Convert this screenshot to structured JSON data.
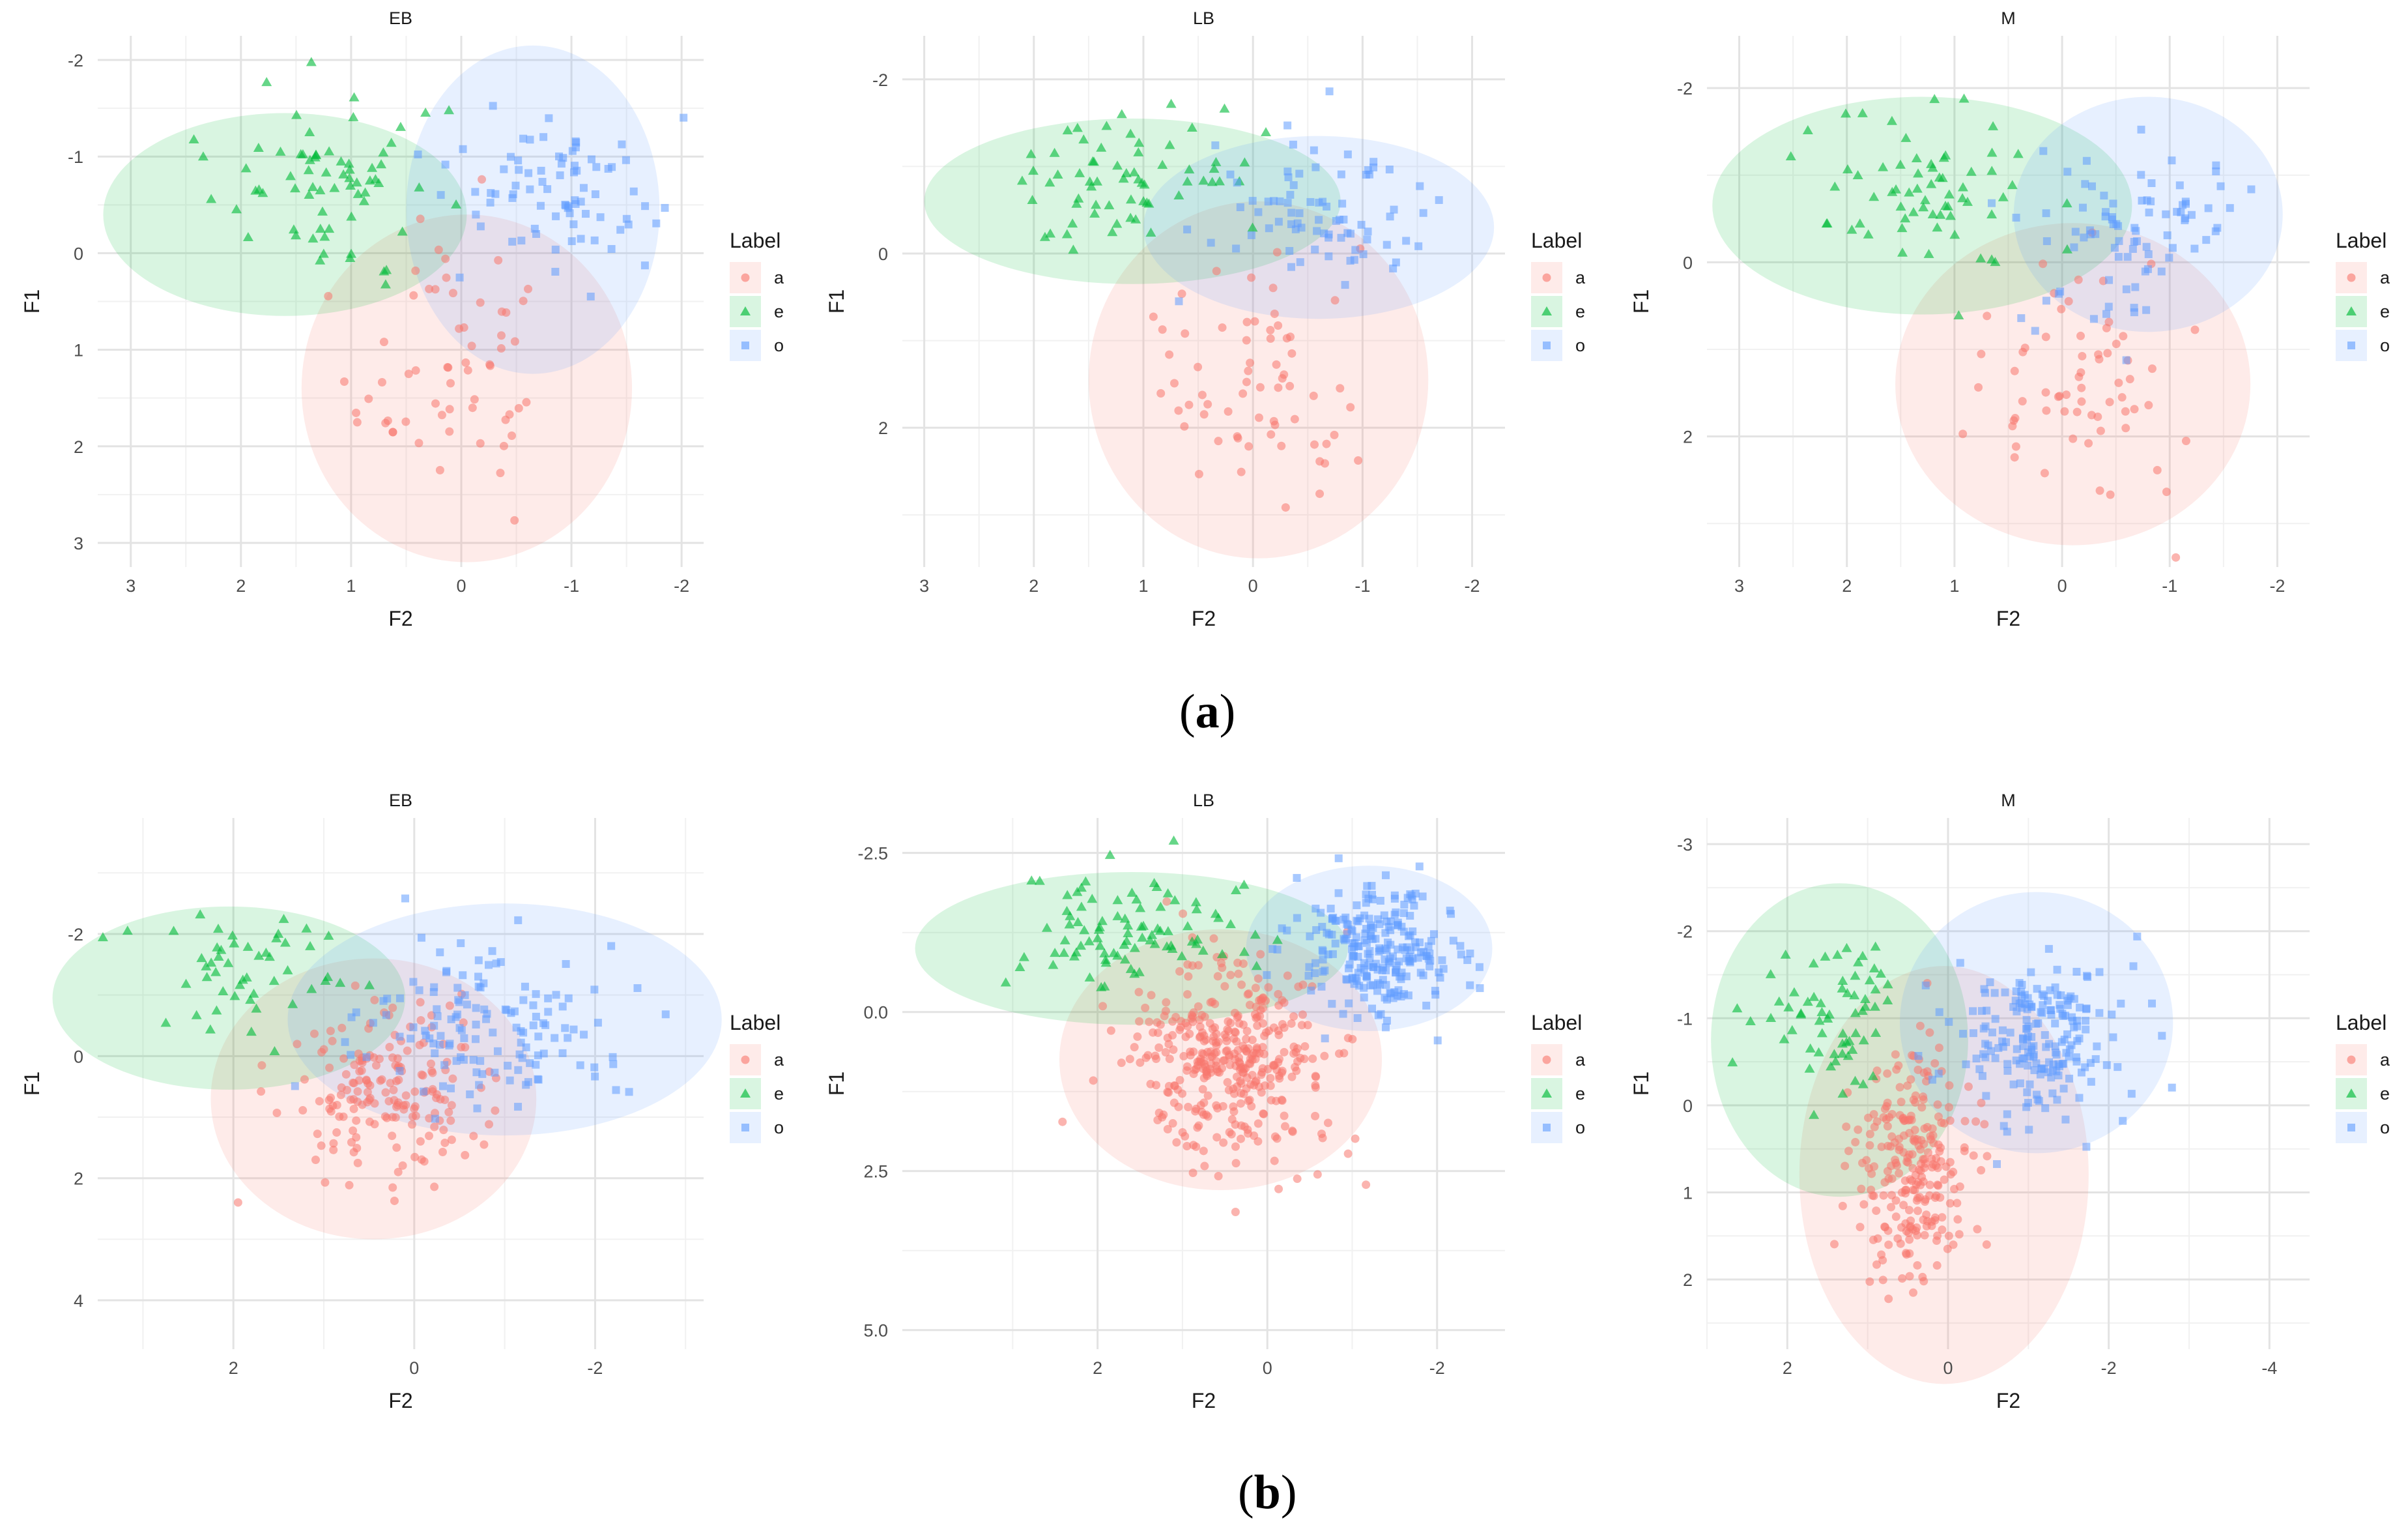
{
  "figure": {
    "row_labels": [
      "a",
      "b"
    ]
  },
  "legend_title": "Label",
  "colors": {
    "a": "#F8766D",
    "e": "#00BA38",
    "o": "#619CFF"
  },
  "chart_data": [
    {
      "type": "scatter",
      "title": "EB",
      "xlabel": "F2",
      "ylabel": "F1",
      "x_reversed": true,
      "y_reversed": true,
      "xlim": [
        3.3,
        -2.2
      ],
      "ylim": [
        -2.25,
        3.25
      ],
      "xticks": [
        3,
        2,
        1,
        0,
        -1,
        -2
      ],
      "yticks": [
        -2,
        -1,
        0,
        1,
        2,
        3
      ],
      "legend": [
        "a",
        "e",
        "o"
      ],
      "legend_position": "right",
      "grid": true,
      "series": [
        {
          "name": "a",
          "n": 60,
          "cx": 0.0,
          "cy": 1.2,
          "sx": 0.45,
          "sy": 0.75,
          "ellipse": {
            "cx": -0.05,
            "cy": 1.4,
            "rx": 1.5,
            "ry": 1.8
          },
          "shape": "circle"
        },
        {
          "name": "e",
          "n": 70,
          "cx": 1.2,
          "cy": -0.75,
          "sx": 0.55,
          "sy": 0.45,
          "ellipse": {
            "cx": 1.6,
            "cy": -0.4,
            "rx": 1.65,
            "ry": 1.05
          },
          "shape": "triangle"
        },
        {
          "name": "o",
          "n": 80,
          "cx": -0.85,
          "cy": -0.6,
          "sx": 0.45,
          "sy": 0.45,
          "ellipse": {
            "cx": -0.65,
            "cy": -0.45,
            "rx": 1.15,
            "ry": 1.7
          },
          "shape": "square"
        }
      ]
    },
    {
      "type": "scatter",
      "title": "LB",
      "xlabel": "F2",
      "ylabel": "F1",
      "x_reversed": true,
      "y_reversed": true,
      "xlim": [
        3.2,
        -2.3
      ],
      "ylim": [
        -2.5,
        3.6
      ],
      "xticks": [
        3,
        2,
        1,
        0,
        -1,
        -2
      ],
      "yticks": [
        -2,
        0,
        2
      ],
      "legend": [
        "a",
        "e",
        "o"
      ],
      "legend_position": "right",
      "grid": true,
      "series": [
        {
          "name": "a",
          "n": 65,
          "cx": 0.0,
          "cy": 1.3,
          "sx": 0.5,
          "sy": 0.8,
          "ellipse": {
            "cx": -0.05,
            "cy": 1.45,
            "rx": 1.55,
            "ry": 2.05
          },
          "shape": "circle"
        },
        {
          "name": "e",
          "n": 65,
          "cx": 1.2,
          "cy": -0.75,
          "sx": 0.5,
          "sy": 0.4,
          "ellipse": {
            "cx": 1.1,
            "cy": -0.6,
            "rx": 1.9,
            "ry": 0.95
          },
          "shape": "triangle"
        },
        {
          "name": "o",
          "n": 80,
          "cx": -0.7,
          "cy": -0.4,
          "sx": 0.5,
          "sy": 0.45,
          "ellipse": {
            "cx": -0.6,
            "cy": -0.3,
            "rx": 1.6,
            "ry": 1.05
          },
          "shape": "square"
        }
      ]
    },
    {
      "type": "scatter",
      "title": "M",
      "xlabel": "F2",
      "ylabel": "F1",
      "x_reversed": true,
      "y_reversed": true,
      "xlim": [
        3.3,
        -2.3
      ],
      "ylim": [
        -2.6,
        3.5
      ],
      "xticks": [
        3,
        2,
        1,
        0,
        -1,
        -2
      ],
      "yticks": [
        -2,
        0,
        2
      ],
      "legend": [
        "a",
        "e",
        "o"
      ],
      "legend_position": "right",
      "grid": true,
      "series": [
        {
          "name": "a",
          "n": 65,
          "cx": -0.1,
          "cy": 1.3,
          "sx": 0.5,
          "sy": 0.75,
          "ellipse": {
            "cx": -0.1,
            "cy": 1.4,
            "rx": 1.65,
            "ry": 1.85
          },
          "shape": "circle"
        },
        {
          "name": "e",
          "n": 65,
          "cx": 1.2,
          "cy": -0.75,
          "sx": 0.55,
          "sy": 0.45,
          "ellipse": {
            "cx": 1.3,
            "cy": -0.65,
            "rx": 1.95,
            "ry": 1.25
          },
          "shape": "triangle"
        },
        {
          "name": "o",
          "n": 85,
          "cx": -0.6,
          "cy": -0.3,
          "sx": 0.5,
          "sy": 0.55,
          "ellipse": {
            "cx": -0.8,
            "cy": -0.55,
            "rx": 1.25,
            "ry": 1.35
          },
          "shape": "square"
        }
      ]
    },
    {
      "type": "scatter",
      "title": "EB",
      "xlabel": "F2",
      "ylabel": "F1",
      "x_reversed": true,
      "y_reversed": true,
      "xlim": [
        3.5,
        -3.2
      ],
      "ylim": [
        -3.9,
        4.8
      ],
      "xticks": [
        2,
        0,
        -2
      ],
      "yticks": [
        -2,
        0,
        2,
        4
      ],
      "legend": [
        "a",
        "e",
        "o"
      ],
      "legend_position": "right",
      "grid": true,
      "series": [
        {
          "name": "a",
          "n": 180,
          "cx": 0.3,
          "cy": 0.6,
          "sx": 0.55,
          "sy": 0.7,
          "ellipse": {
            "cx": 0.45,
            "cy": 0.7,
            "rx": 1.8,
            "ry": 2.3
          },
          "shape": "circle"
        },
        {
          "name": "e",
          "n": 50,
          "cx": 1.9,
          "cy": -1.4,
          "sx": 0.6,
          "sy": 0.55,
          "ellipse": {
            "cx": 2.05,
            "cy": -0.95,
            "rx": 1.95,
            "ry": 1.5
          },
          "shape": "triangle"
        },
        {
          "name": "o",
          "n": 140,
          "cx": -0.9,
          "cy": -0.5,
          "sx": 0.75,
          "sy": 0.7,
          "ellipse": {
            "cx": -1.0,
            "cy": -0.6,
            "rx": 2.4,
            "ry": 1.9
          },
          "shape": "square"
        }
      ]
    },
    {
      "type": "scatter",
      "title": "LB",
      "xlabel": "F2",
      "ylabel": "F1",
      "x_reversed": true,
      "y_reversed": true,
      "xlim": [
        4.3,
        -2.8
      ],
      "ylim": [
        -3.05,
        5.3
      ],
      "xticks": [
        2,
        0,
        -2
      ],
      "yticks": [
        -2.5,
        0.0,
        2.5,
        5.0
      ],
      "legend": [
        "a",
        "e",
        "o"
      ],
      "legend_position": "right",
      "grid": true,
      "series": [
        {
          "name": "a",
          "n": 380,
          "cx": 0.45,
          "cy": 0.75,
          "sx": 0.55,
          "sy": 0.75,
          "ellipse": {
            "cx": 0.55,
            "cy": 0.75,
            "rx": 1.9,
            "ry": 2.05
          },
          "shape": "circle"
        },
        {
          "name": "e",
          "n": 90,
          "cx": 1.6,
          "cy": -1.2,
          "sx": 0.6,
          "sy": 0.45,
          "ellipse": {
            "cx": 1.6,
            "cy": -1.0,
            "rx": 2.55,
            "ry": 1.2
          },
          "shape": "triangle"
        },
        {
          "name": "o",
          "n": 240,
          "cx": -1.3,
          "cy": -1.0,
          "sx": 0.45,
          "sy": 0.5,
          "ellipse": {
            "cx": -1.2,
            "cy": -1.0,
            "rx": 1.45,
            "ry": 1.3
          },
          "shape": "square"
        }
      ]
    },
    {
      "type": "scatter",
      "title": "M",
      "xlabel": "F2",
      "ylabel": "F1",
      "x_reversed": true,
      "y_reversed": true,
      "xlim": [
        3.0,
        -4.5
      ],
      "ylim": [
        -3.3,
        2.8
      ],
      "xticks": [
        2,
        0,
        -2,
        -4
      ],
      "yticks": [
        -3,
        -2,
        -1,
        0,
        1,
        2
      ],
      "legend": [
        "a",
        "e",
        "o"
      ],
      "legend_position": "right",
      "grid": true,
      "series": [
        {
          "name": "a",
          "n": 250,
          "cx": 0.4,
          "cy": 0.65,
          "sx": 0.35,
          "sy": 0.7,
          "ellipse": {
            "cx": 0.05,
            "cy": 0.8,
            "rx": 1.8,
            "ry": 2.4
          },
          "shape": "circle"
        },
        {
          "name": "e",
          "n": 65,
          "cx": 1.4,
          "cy": -1.0,
          "sx": 0.45,
          "sy": 0.45,
          "ellipse": {
            "cx": 1.35,
            "cy": -0.75,
            "rx": 1.6,
            "ry": 1.8
          },
          "shape": "triangle"
        },
        {
          "name": "o",
          "n": 200,
          "cx": -1.1,
          "cy": -0.75,
          "sx": 0.55,
          "sy": 0.45,
          "ellipse": {
            "cx": -1.1,
            "cy": -0.95,
            "rx": 1.7,
            "ry": 1.5
          },
          "shape": "square"
        }
      ]
    }
  ]
}
